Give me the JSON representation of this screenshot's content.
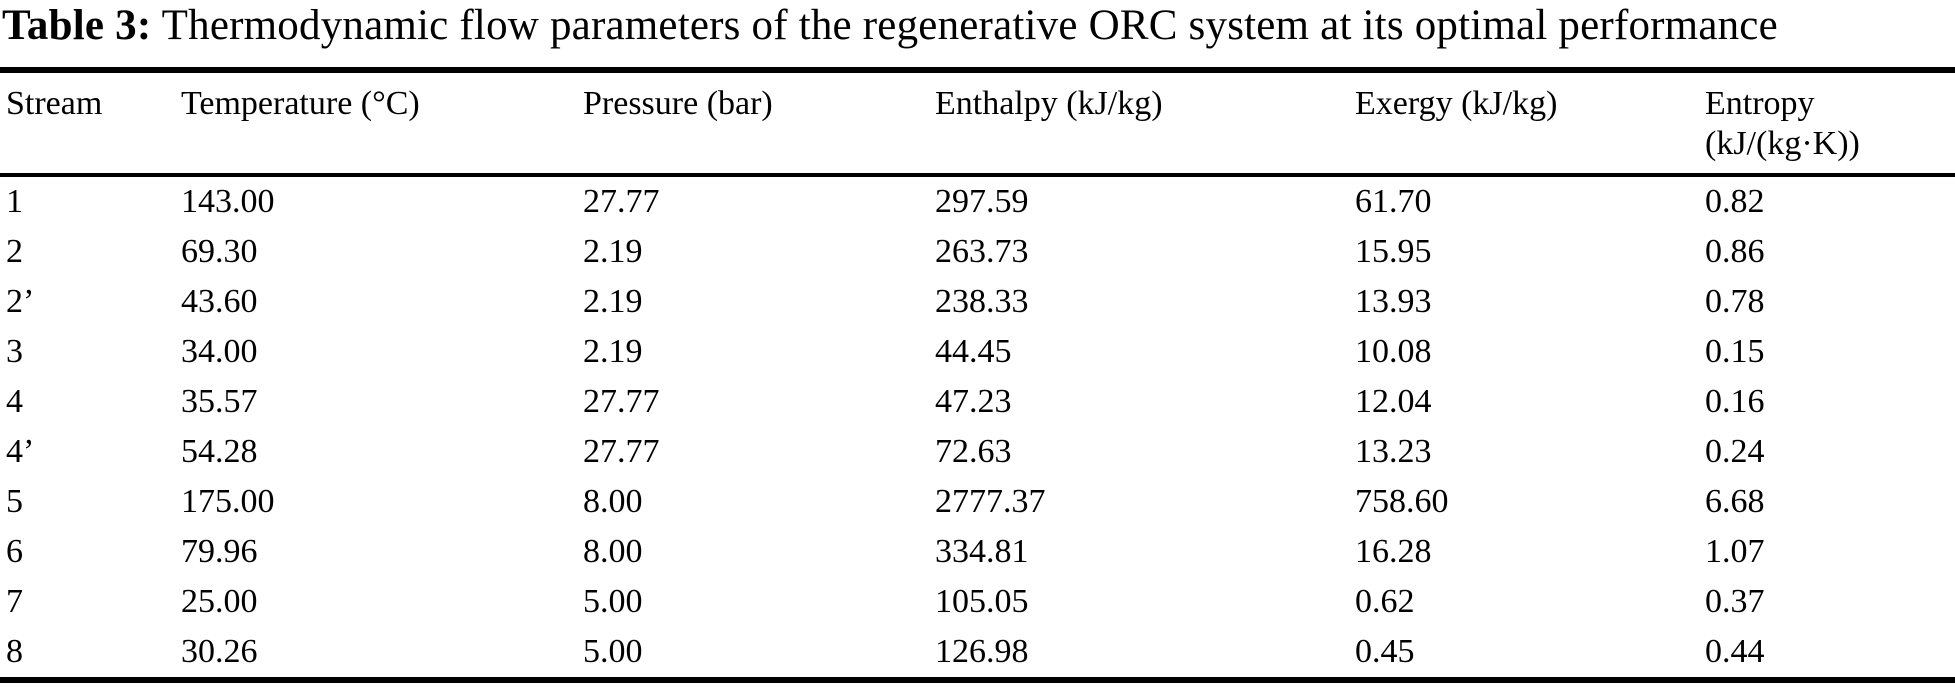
{
  "caption": {
    "label": "Table 3:",
    "text": "Thermodynamic flow parameters of the regenerative ORC system at its optimal performance"
  },
  "table": {
    "headers": {
      "stream": "Stream",
      "temperature": "Temperature (°C)",
      "pressure": "Pressure (bar)",
      "enthalpy": "Enthalpy (kJ/kg)",
      "exergy": "Exergy (kJ/kg)",
      "entropy_line1": "Entropy",
      "entropy_line2": "(kJ/(kg·K))"
    },
    "rows": [
      [
        "1",
        "143.00",
        "27.77",
        "297.59",
        "61.70",
        "0.82"
      ],
      [
        "2",
        "69.30",
        "2.19",
        "263.73",
        "15.95",
        "0.86"
      ],
      [
        "2’",
        "43.60",
        "2.19",
        "238.33",
        "13.93",
        "0.78"
      ],
      [
        "3",
        "34.00",
        "2.19",
        "44.45",
        "10.08",
        "0.15"
      ],
      [
        "4",
        "35.57",
        "27.77",
        "47.23",
        "12.04",
        "0.16"
      ],
      [
        "4’",
        "54.28",
        "27.77",
        "72.63",
        "13.23",
        "0.24"
      ],
      [
        "5",
        "175.00",
        "8.00",
        "2777.37",
        "758.60",
        "6.68"
      ],
      [
        "6",
        "79.96",
        "8.00",
        "334.81",
        "16.28",
        "1.07"
      ],
      [
        "7",
        "25.00",
        "5.00",
        "105.05",
        "0.62",
        "0.37"
      ],
      [
        "8",
        "30.26",
        "5.00",
        "126.98",
        "0.45",
        "0.44"
      ]
    ]
  },
  "colors": {
    "text": "#000000",
    "background": "#ffffff",
    "rule": "#000000"
  }
}
